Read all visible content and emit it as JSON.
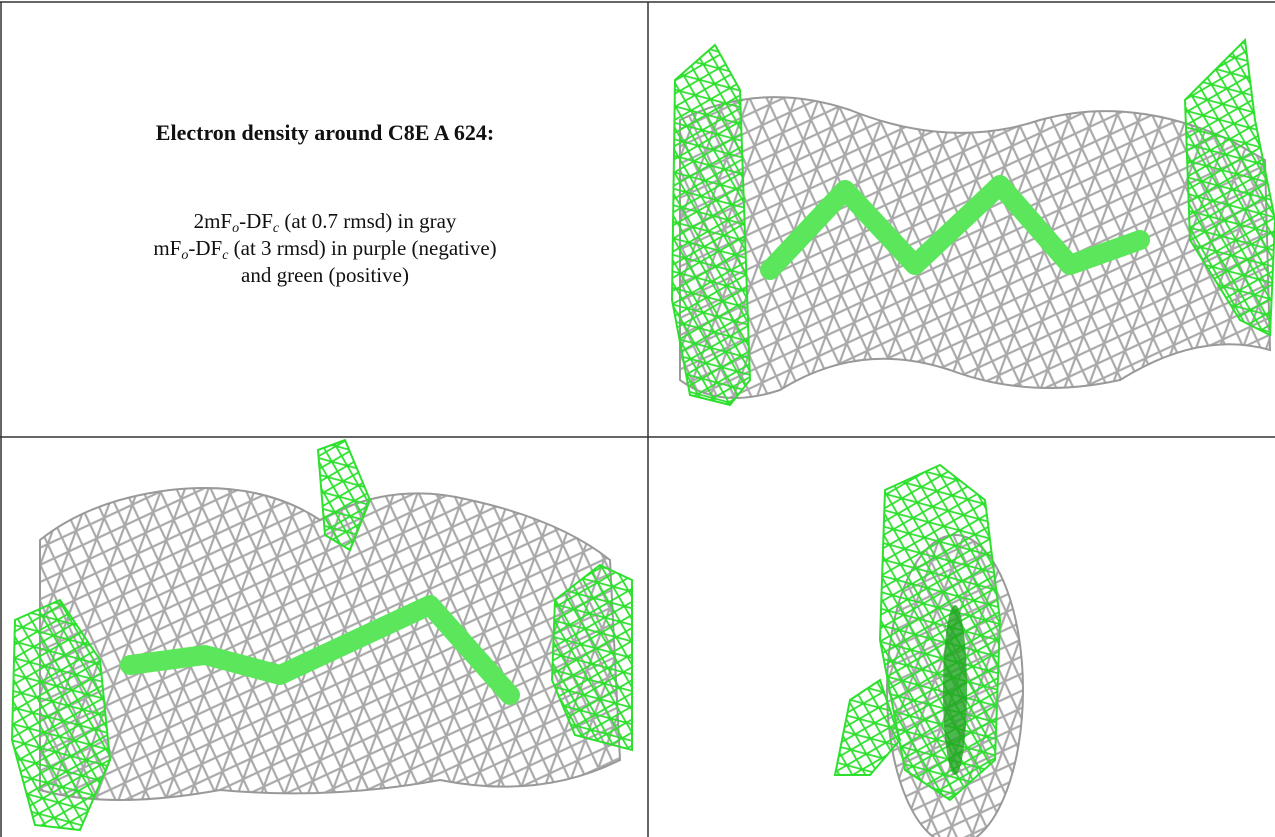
{
  "caption": {
    "title": "Electron density around C8E A 624:",
    "lines": [
      [
        "2mF",
        "o",
        "-DF",
        "c",
        " (at 0.7 rmsd) in gray"
      ],
      [
        "mF",
        "o",
        "-DF",
        "c",
        " (at 3 rmsd) in purple (negative)"
      ],
      [
        "and green (positive)"
      ]
    ]
  }
}
